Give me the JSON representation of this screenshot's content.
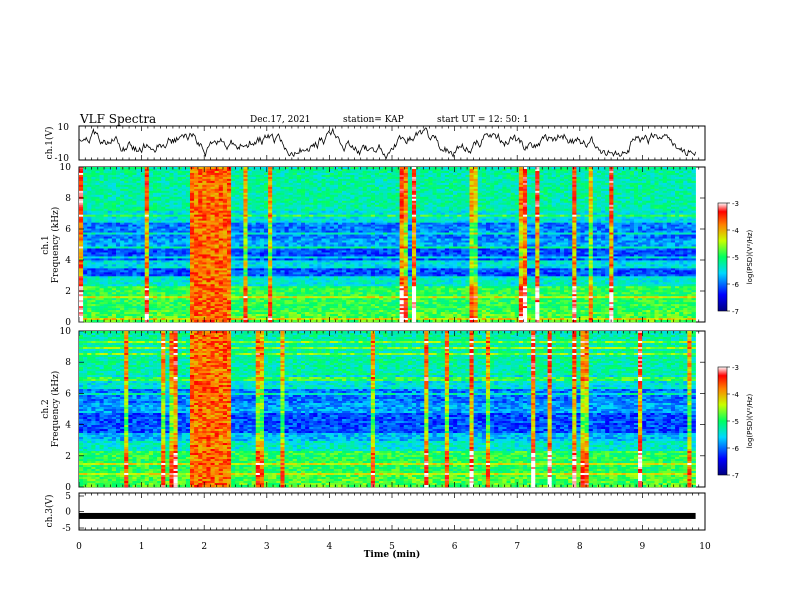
{
  "header": {
    "title": "VLF  Spectra",
    "date": "Dec.17, 2021",
    "station": "station= KAP",
    "start": "start  UT  =   12: 50: 1"
  },
  "chart_data": [
    {
      "type": "line",
      "panel": "ch1-waveform",
      "ylabel": "ch.1(V)",
      "xlim": [
        0,
        10
      ],
      "ylim": [
        -10,
        10
      ],
      "yticks": [
        10,
        -10
      ],
      "x_end": 9.85,
      "description_values": "noisy waveform, amplitude mostly between about -8 and 8 V"
    },
    {
      "type": "heatmap",
      "panel": "ch1-spectrogram",
      "ylabel": "ch.1\nFrequency (kHz)",
      "xlim": [
        0,
        10
      ],
      "ylim": [
        0,
        10
      ],
      "yticks": [
        0,
        2,
        4,
        6,
        8,
        10
      ],
      "colorbar": {
        "label": "log(PSD)(V²/Hz)",
        "range": [
          -7,
          -3
        ],
        "ticks": [
          -3,
          -4,
          -5,
          -6,
          -7
        ]
      },
      "burst_interval_min": [
        1.8,
        2.4
      ]
    },
    {
      "type": "heatmap",
      "panel": "ch2-spectrogram",
      "ylabel": "ch.2\nFrequency (kHz)",
      "xlim": [
        0,
        10
      ],
      "ylim": [
        0,
        10
      ],
      "yticks": [
        0,
        2,
        4,
        6,
        8,
        10
      ],
      "colorbar": {
        "label": "log(PSD)(V²/Hz)",
        "range": [
          -7,
          -3
        ],
        "ticks": [
          -3,
          -4,
          -5,
          -6,
          -7
        ]
      },
      "burst_interval_min": [
        1.8,
        2.4
      ]
    },
    {
      "type": "line",
      "panel": "ch3-signal",
      "ylabel": "ch.3(V)",
      "xlim": [
        0,
        10
      ],
      "ylim": [
        -5,
        5
      ],
      "yticks": [
        5,
        0,
        -5
      ],
      "x": [
        0,
        9.85
      ],
      "y": [
        -1.2,
        -1.2
      ]
    }
  ],
  "xaxis": {
    "label": "Time  (min)",
    "ticks": [
      "0",
      "1",
      "2",
      "3",
      "4",
      "5",
      "6",
      "7",
      "8",
      "9",
      "10"
    ]
  },
  "ylabels": {
    "ch1": "ch.1(V)",
    "ch3": "ch.3(V)",
    "spec1_a": "ch.1",
    "spec2_a": "ch.2",
    "freq": "Frequency  (kHz)"
  },
  "ticklabels": {
    "ch1": [
      "10",
      "-10"
    ],
    "ch3": [
      "5",
      "0",
      "-5"
    ],
    "freq": [
      "0",
      "2",
      "4",
      "6",
      "8",
      "10"
    ],
    "cbar": [
      "-3",
      "-4",
      "-5",
      "-6",
      "-7"
    ]
  },
  "colorbar_label": "log(PSD)(V²/Hz)"
}
